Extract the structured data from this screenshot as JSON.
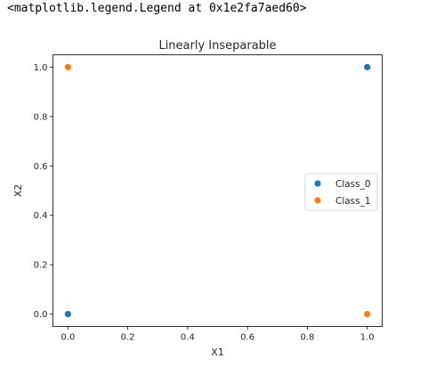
{
  "output": {
    "repr_text": "<matplotlib.legend.Legend at 0x1e2fa7aed60>"
  },
  "chart_data": {
    "type": "scatter",
    "title": "Linearly Inseparable",
    "xlabel": "X1",
    "ylabel": "X2",
    "xlim": [
      -0.05,
      1.05
    ],
    "ylim": [
      -0.05,
      1.05
    ],
    "xticks": [
      "0.0",
      "0.2",
      "0.4",
      "0.6",
      "0.8",
      "1.0"
    ],
    "yticks": [
      "0.0",
      "0.2",
      "0.4",
      "0.6",
      "0.8",
      "1.0"
    ],
    "grid": false,
    "legend_position": "center-right",
    "series": [
      {
        "name": "Class_0",
        "color": "#1f77b4",
        "points": [
          {
            "x": 0.0,
            "y": 0.0
          },
          {
            "x": 1.0,
            "y": 1.0
          }
        ]
      },
      {
        "name": "Class_1",
        "color": "#ff7f0e",
        "points": [
          {
            "x": 0.0,
            "y": 1.0
          },
          {
            "x": 1.0,
            "y": 0.0
          }
        ]
      }
    ]
  }
}
